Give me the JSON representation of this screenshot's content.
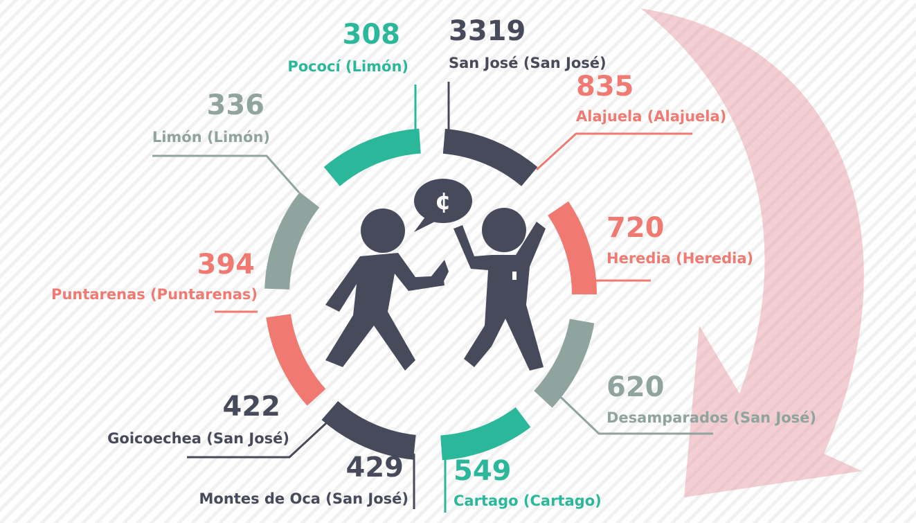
{
  "items": [
    {
      "value": 308,
      "label": "Pococí (Limón)",
      "color": "#2bb89a"
    },
    {
      "value": 3319,
      "label": "San José (San José)",
      "color": "#474a5a"
    },
    {
      "value": 835,
      "label": "Alajuela (Alajuela)",
      "color": "#f07a72"
    },
    {
      "value": 336,
      "label": "Limón (Limón)",
      "color": "#8fa39f"
    },
    {
      "value": 720,
      "label": "Heredia (Heredia)",
      "color": "#f07a72"
    },
    {
      "value": 394,
      "label": "Puntarenas (Puntarenas)",
      "color": "#f07a72"
    },
    {
      "value": 620,
      "label": "Desamparados (San José)",
      "color": "#8fa39f"
    },
    {
      "value": 422,
      "label": "Goicoechea (San José)",
      "color": "#474a5a"
    },
    {
      "value": 429,
      "label": "Montes de Oca (San José)",
      "color": "#474a5a"
    },
    {
      "value": 549,
      "label": "Cartago (Cartago)",
      "color": "#2bb89a"
    }
  ]
}
